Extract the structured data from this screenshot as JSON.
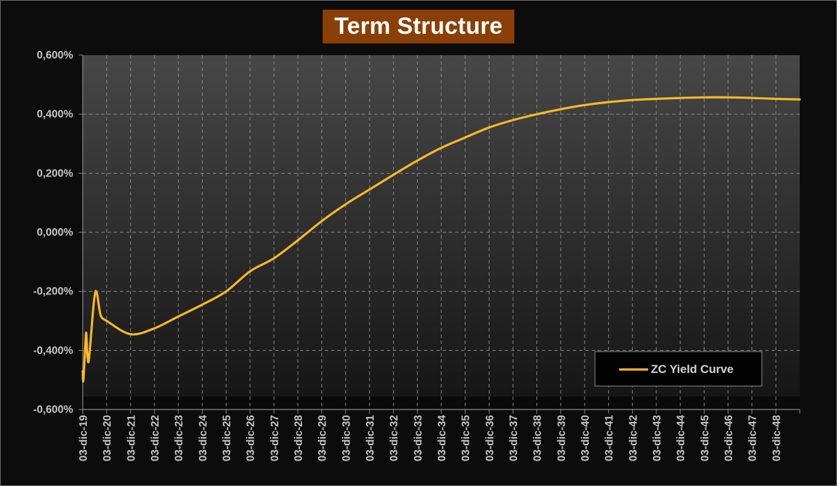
{
  "chart_data": {
    "type": "line",
    "title": "Term Structure",
    "xlabel": "",
    "ylabel": "",
    "x_tick_labels": [
      "03-dic-19",
      "03-dic-20",
      "03-dic-21",
      "03-dic-22",
      "03-dic-23",
      "03-dic-24",
      "03-dic-25",
      "03-dic-26",
      "03-dic-27",
      "03-dic-28",
      "03-dic-29",
      "03-dic-30",
      "03-dic-31",
      "03-dic-32",
      "03-dic-33",
      "03-dic-34",
      "03-dic-35",
      "03-dic-36",
      "03-dic-37",
      "03-dic-38",
      "03-dic-39",
      "03-dic-40",
      "03-dic-41",
      "03-dic-42",
      "03-dic-43",
      "03-dic-44",
      "03-dic-45",
      "03-dic-46",
      "03-dic-47",
      "03-dic-48"
    ],
    "y_tick_labels": [
      "0,600%",
      "0,400%",
      "0,200%",
      "0,000%",
      "-0,200%",
      "-0,400%",
      "-0,600%"
    ],
    "ylim": [
      -0.6,
      0.6
    ],
    "y_unit": "%",
    "xlim": [
      "2019-12-03",
      "2049-12-03"
    ],
    "grid": true,
    "legend_position": "bottom-right",
    "colors": {
      "line": "#fbb826",
      "title_background": "#8a3f06",
      "axis": "#8c8c8c",
      "grid": "#8a8a8a"
    },
    "series": [
      {
        "name": "ZC Yield Curve",
        "points": [
          {
            "x": "2019-12-03",
            "y": -0.47
          },
          {
            "x": "2019-12-10",
            "y": -0.505
          },
          {
            "x": "2019-12-24",
            "y": -0.46
          },
          {
            "x": "2020-01-10",
            "y": -0.39
          },
          {
            "x": "2020-01-25",
            "y": -0.34
          },
          {
            "x": "2020-02-10",
            "y": -0.41
          },
          {
            "x": "2020-02-28",
            "y": -0.44
          },
          {
            "x": "2020-03-20",
            "y": -0.4
          },
          {
            "x": "2020-04-15",
            "y": -0.33
          },
          {
            "x": "2020-05-15",
            "y": -0.25
          },
          {
            "x": "2020-06-10",
            "y": -0.205
          },
          {
            "x": "2020-06-25",
            "y": -0.2
          },
          {
            "x": "2020-07-15",
            "y": -0.215
          },
          {
            "x": "2020-08-10",
            "y": -0.255
          },
          {
            "x": "2020-09-10",
            "y": -0.285
          },
          {
            "x": "2020-12-03",
            "y": -0.3
          },
          {
            "x": "2021-12-03",
            "y": -0.345
          },
          {
            "x": "2022-12-03",
            "y": -0.325
          },
          {
            "x": "2023-12-03",
            "y": -0.285
          },
          {
            "x": "2024-12-03",
            "y": -0.245
          },
          {
            "x": "2025-12-03",
            "y": -0.2
          },
          {
            "x": "2026-12-03",
            "y": -0.132
          },
          {
            "x": "2027-12-03",
            "y": -0.088
          },
          {
            "x": "2028-12-03",
            "y": -0.027
          },
          {
            "x": "2029-12-03",
            "y": 0.038
          },
          {
            "x": "2030-12-03",
            "y": 0.095
          },
          {
            "x": "2031-12-03",
            "y": 0.145
          },
          {
            "x": "2032-12-03",
            "y": 0.195
          },
          {
            "x": "2033-12-03",
            "y": 0.243
          },
          {
            "x": "2034-12-03",
            "y": 0.286
          },
          {
            "x": "2035-12-03",
            "y": 0.321
          },
          {
            "x": "2036-12-03",
            "y": 0.355
          },
          {
            "x": "2037-12-03",
            "y": 0.38
          },
          {
            "x": "2038-12-03",
            "y": 0.4
          },
          {
            "x": "2039-12-03",
            "y": 0.417
          },
          {
            "x": "2040-12-03",
            "y": 0.431
          },
          {
            "x": "2041-12-03",
            "y": 0.441
          },
          {
            "x": "2042-12-03",
            "y": 0.448
          },
          {
            "x": "2043-12-03",
            "y": 0.452
          },
          {
            "x": "2044-12-03",
            "y": 0.455
          },
          {
            "x": "2045-12-03",
            "y": 0.457
          },
          {
            "x": "2046-12-03",
            "y": 0.457
          },
          {
            "x": "2047-12-03",
            "y": 0.455
          },
          {
            "x": "2048-12-03",
            "y": 0.452
          },
          {
            "x": "2049-12-03",
            "y": 0.45
          }
        ]
      }
    ]
  }
}
